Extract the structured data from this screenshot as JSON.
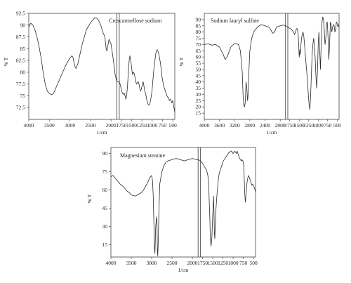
{
  "chart_data": [
    {
      "type": "line",
      "title": "Croscarmellose sodium",
      "xlabel": "1/cm",
      "ylabel": "% T",
      "xlim": [
        4000,
        450
      ],
      "ylim": [
        70,
        92.5
      ],
      "x_ticks": [
        4000,
        3500,
        3000,
        2500,
        2000,
        1750,
        1500,
        1250,
        1000,
        750,
        500
      ],
      "y_ticks": [
        72.5,
        75,
        77.5,
        80,
        82.5,
        85,
        87.5,
        90,
        92.5
      ],
      "x_break": [
        1860,
        1800
      ],
      "series": [
        {
          "x": [
            4000,
            3950,
            3900,
            3850,
            3800,
            3750,
            3700,
            3650,
            3600,
            3550,
            3500,
            3450,
            3400,
            3350,
            3300,
            3250,
            3200,
            3150,
            3100,
            3050,
            3000,
            2950,
            2920,
            2900,
            2870,
            2850,
            2800,
            2750,
            2700,
            2600,
            2500,
            2450,
            2400,
            2350,
            2300,
            2250,
            2200,
            2150,
            2120,
            2100,
            2080,
            2050,
            2000,
            1950,
            1900,
            1860,
            1800,
            1780,
            1760,
            1740,
            1720,
            1700,
            1680,
            1660,
            1640,
            1620,
            1600,
            1580,
            1560,
            1540,
            1520,
            1500,
            1480,
            1460,
            1440,
            1420,
            1400,
            1380,
            1360,
            1340,
            1320,
            1300,
            1280,
            1260,
            1240,
            1220,
            1200,
            1180,
            1160,
            1140,
            1120,
            1100,
            1080,
            1060,
            1040,
            1020,
            1000,
            980,
            960,
            940,
            920,
            900,
            880,
            860,
            840,
            820,
            800,
            780,
            760,
            740,
            720,
            700,
            680,
            660,
            640,
            620,
            600,
            580,
            560,
            540,
            520,
            500,
            480,
            460,
            450
          ],
          "y": [
            89.6,
            90.4,
            90.0,
            89.0,
            87.5,
            85.5,
            83.0,
            80.0,
            77.5,
            76.0,
            75.5,
            75.2,
            75.5,
            76.5,
            77.5,
            78.5,
            79.5,
            80.5,
            81.5,
            82.3,
            83.0,
            83.5,
            83.0,
            82.0,
            81.0,
            80.8,
            82.0,
            84.0,
            86.0,
            89.0,
            90.5,
            91.0,
            91.5,
            91.5,
            91.0,
            90.0,
            88.5,
            87.5,
            85.0,
            84.5,
            85.5,
            87.0,
            86.0,
            83.0,
            79.5,
            78.0,
            78.0,
            77.5,
            76.8,
            76.0,
            75.5,
            75.3,
            75.6,
            75.0,
            74.3,
            75.0,
            77.0,
            80.0,
            82.5,
            83.5,
            82.5,
            81.0,
            79.5,
            80.0,
            79.8,
            79.0,
            78.0,
            77.5,
            77.8,
            78.0,
            77.5,
            76.5,
            76.0,
            76.5,
            77.5,
            78.0,
            77.0,
            76.0,
            75.5,
            74.5,
            73.8,
            73.2,
            73.0,
            73.3,
            74.0,
            75.0,
            76.5,
            78.5,
            80.5,
            82.0,
            83.5,
            84.5,
            84.8,
            84.5,
            84.0,
            83.0,
            82.0,
            80.5,
            79.0,
            78.0,
            77.0,
            76.5,
            76.0,
            75.5,
            75.0,
            74.7,
            74.5,
            74.0,
            74.3,
            74.0,
            73.5,
            74.0,
            73.0,
            72.0,
            71.5
          ]
        }
      ]
    },
    {
      "type": "line",
      "title": "Sodium lauryl sulfate",
      "xlabel": "1/cm",
      "ylabel": "% T",
      "xlim": [
        4000,
        450
      ],
      "ylim": [
        10,
        95
      ],
      "x_ticks": [
        4000,
        3600,
        3200,
        2800,
        2400,
        2000,
        1750,
        1500,
        1250,
        1000,
        750,
        500
      ],
      "y_ticks": [
        15,
        20,
        25,
        30,
        35,
        40,
        45,
        50,
        55,
        60,
        65,
        70,
        75,
        80,
        85,
        90
      ],
      "x_break": [
        1860,
        1800
      ],
      "series": [
        {
          "x": [
            4000,
            3900,
            3800,
            3700,
            3600,
            3500,
            3450,
            3400,
            3300,
            3200,
            3100,
            3050,
            3000,
            2980,
            2960,
            2940,
            2920,
            2900,
            2880,
            2860,
            2850,
            2830,
            2800,
            2750,
            2700,
            2600,
            2500,
            2400,
            2300,
            2250,
            2200,
            2150,
            2100,
            2000,
            1950,
            1900,
            1860,
            1800,
            1750,
            1700,
            1650,
            1620,
            1600,
            1580,
            1560,
            1540,
            1520,
            1500,
            1480,
            1470,
            1460,
            1440,
            1420,
            1400,
            1380,
            1360,
            1340,
            1320,
            1300,
            1280,
            1260,
            1240,
            1220,
            1200,
            1180,
            1160,
            1140,
            1120,
            1100,
            1080,
            1060,
            1040,
            1020,
            1000,
            980,
            960,
            940,
            920,
            900,
            880,
            860,
            840,
            820,
            800,
            780,
            760,
            740,
            720,
            700,
            680,
            660,
            640,
            620,
            600,
            580,
            560,
            540,
            520,
            500,
            480,
            460,
            450
          ],
          "y": [
            70,
            70.5,
            69.5,
            70,
            68,
            62,
            58,
            60,
            68,
            71,
            70,
            65,
            48,
            30,
            22,
            20,
            24,
            40,
            35,
            25,
            28,
            45,
            65,
            75,
            80,
            84,
            86,
            85,
            84,
            82,
            79,
            80,
            84,
            85,
            85.5,
            85.5,
            85,
            84,
            83,
            82,
            80,
            78,
            80,
            82,
            83,
            81,
            75,
            60,
            66,
            62,
            68,
            75,
            78,
            80,
            77,
            70,
            62,
            55,
            48,
            40,
            30,
            22,
            18,
            28,
            45,
            62,
            70,
            75,
            70,
            60,
            45,
            35,
            48,
            70,
            80,
            65,
            50,
            72,
            88,
            92,
            90,
            82,
            70,
            75,
            87,
            88,
            76,
            58,
            70,
            88,
            86,
            80,
            84,
            86,
            85,
            80,
            82,
            88,
            87,
            84,
            86,
            85
          ]
        }
      ]
    },
    {
      "type": "line",
      "title": "Magnesium stearate",
      "xlabel": "1/cm",
      "ylabel": "% T",
      "xlim": [
        4000,
        450
      ],
      "ylim": [
        5,
        95
      ],
      "x_ticks": [
        4000,
        3500,
        3000,
        2500,
        2000,
        1750,
        1500,
        1250,
        1000,
        750,
        500
      ],
      "y_ticks": [
        15,
        30,
        45,
        60,
        75,
        90
      ],
      "x_break": [
        1860,
        1800
      ],
      "series": [
        {
          "x": [
            4000,
            3950,
            3900,
            3850,
            3800,
            3750,
            3700,
            3650,
            3600,
            3550,
            3500,
            3450,
            3400,
            3350,
            3300,
            3250,
            3200,
            3150,
            3100,
            3050,
            3000,
            2980,
            2960,
            2950,
            2930,
            2920,
            2900,
            2880,
            2870,
            2860,
            2850,
            2840,
            2820,
            2800,
            2750,
            2700,
            2650,
            2600,
            2500,
            2400,
            2300,
            2200,
            2100,
            2000,
            1950,
            1900,
            1860,
            1800,
            1750,
            1720,
            1700,
            1680,
            1660,
            1640,
            1620,
            1600,
            1590,
            1580,
            1570,
            1560,
            1540,
            1520,
            1500,
            1480,
            1470,
            1460,
            1450,
            1440,
            1420,
            1400,
            1380,
            1360,
            1340,
            1320,
            1300,
            1280,
            1260,
            1240,
            1220,
            1200,
            1180,
            1160,
            1140,
            1120,
            1100,
            1080,
            1060,
            1040,
            1020,
            1000,
            980,
            960,
            940,
            920,
            900,
            880,
            860,
            840,
            820,
            800,
            780,
            760,
            740,
            730,
            720,
            710,
            700,
            680,
            660,
            640,
            620,
            600,
            580,
            560,
            540,
            520,
            500,
            480,
            460,
            450
          ],
          "y": [
            71,
            72,
            70,
            68,
            66,
            64,
            63,
            61,
            59,
            58,
            56,
            55.5,
            55,
            56,
            57,
            58,
            60,
            63,
            66,
            70,
            72,
            68,
            55,
            40,
            12,
            8,
            30,
            38,
            35,
            10,
            6,
            15,
            45,
            65,
            75,
            80,
            83,
            84,
            85,
            86,
            85,
            84,
            85,
            86,
            85.5,
            85,
            85,
            84,
            82,
            80,
            79,
            78,
            77,
            75,
            72,
            65,
            55,
            45,
            35,
            20,
            14,
            22,
            40,
            55,
            42,
            25,
            20,
            30,
            45,
            55,
            62,
            70,
            74,
            76,
            78,
            80,
            82,
            84,
            85,
            86,
            87,
            88,
            89,
            90,
            91,
            91,
            92,
            92,
            91,
            90,
            91,
            92,
            91,
            90,
            92,
            90,
            88,
            86,
            85,
            84,
            85,
            84,
            80,
            72,
            62,
            55,
            50,
            58,
            66,
            70,
            72,
            70,
            68,
            66,
            64,
            65,
            63,
            62,
            60,
            58
          ]
        }
      ]
    }
  ]
}
